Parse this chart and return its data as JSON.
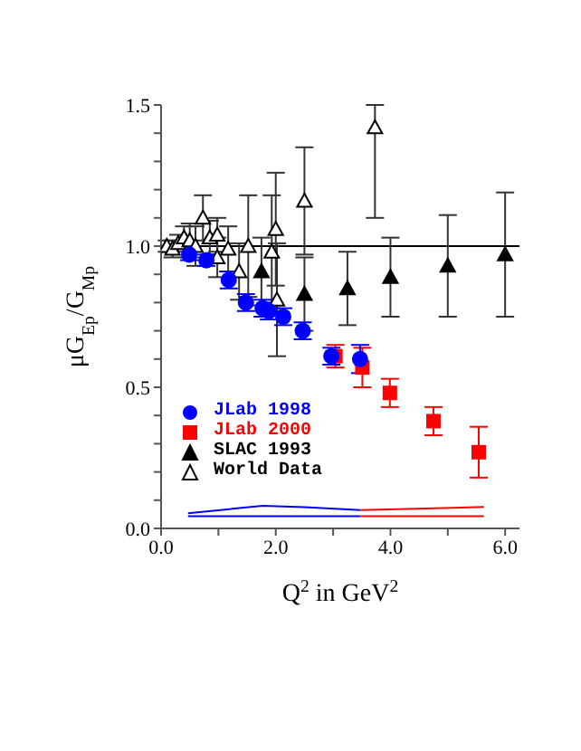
{
  "chart_data": {
    "type": "scatter",
    "xlabel": "Q$^{2}$ in GeV$^{2}$",
    "ylabel": "μG$_{Ep}$/G$_{Mp}$",
    "xlim": [
      0,
      6.25
    ],
    "ylim": [
      0,
      1.5
    ],
    "xticks": [
      {
        "value": 0,
        "label": "0.0"
      },
      {
        "value": 1,
        "label": null
      },
      {
        "value": 2,
        "label": "2.0"
      },
      {
        "value": 3,
        "label": null
      },
      {
        "value": 4,
        "label": "4.0"
      },
      {
        "value": 5,
        "label": null
      },
      {
        "value": 6,
        "label": "6.0"
      }
    ],
    "yticks": [
      {
        "value": 0,
        "label": "0.0"
      },
      {
        "value": 0.1,
        "label": null
      },
      {
        "value": 0.2,
        "label": null
      },
      {
        "value": 0.3,
        "label": null
      },
      {
        "value": 0.4,
        "label": null
      },
      {
        "value": 0.5,
        "label": "0.5"
      },
      {
        "value": 0.6,
        "label": null
      },
      {
        "value": 0.7,
        "label": null
      },
      {
        "value": 0.8,
        "label": null
      },
      {
        "value": 0.9,
        "label": null
      },
      {
        "value": 1,
        "label": "1.0"
      },
      {
        "value": 1.1,
        "label": null
      },
      {
        "value": 1.2,
        "label": null
      },
      {
        "value": 1.3,
        "label": null
      },
      {
        "value": 1.4,
        "label": null
      },
      {
        "value": 1.5,
        "label": "1.5"
      }
    ],
    "grid": false,
    "legend": "bottom left",
    "ref_lines": [
      {
        "axis": "y",
        "value": 1.0,
        "color": "#000000"
      }
    ],
    "series": [
      {
        "name": "JLab 1998",
        "color": "#0000ff",
        "marker": "circle",
        "x": [
          0.49,
          0.79,
          1.18,
          1.48,
          1.77,
          1.88,
          2.13,
          2.47,
          2.97,
          3.47
        ],
        "values": [
          0.97,
          0.95,
          0.88,
          0.8,
          0.78,
          0.77,
          0.75,
          0.7,
          0.61,
          0.6
        ],
        "errors": [
          0.02,
          0.02,
          0.03,
          0.03,
          0.03,
          0.03,
          0.03,
          0.03,
          0.03,
          0.05
        ]
      },
      {
        "name": "JLab 2000",
        "color": "#ff0000",
        "marker": "square",
        "x": [
          3.04,
          3.51,
          3.99,
          4.75,
          5.54
        ],
        "values": [
          0.61,
          0.57,
          0.48,
          0.38,
          0.27
        ],
        "errors": [
          0.04,
          0.07,
          0.05,
          0.05,
          0.09
        ]
      },
      {
        "name": "SLAC 1993",
        "color": "#000000",
        "marker": "triangle",
        "x": [
          1.75,
          2.5,
          3.25,
          4.0,
          5.0,
          6.0
        ],
        "values": [
          0.91,
          0.83,
          0.85,
          0.89,
          0.93,
          0.97
        ],
        "errors": [
          0.12,
          0.13,
          0.13,
          0.14,
          0.18,
          0.22
        ]
      },
      {
        "name": "World Data",
        "color": "#ffffff",
        "marker": "triangle",
        "x": [
          0.1,
          0.2,
          0.3,
          0.4,
          0.5,
          0.6,
          0.73,
          0.85,
          0.98,
          0.98,
          1.17,
          1.36,
          1.52,
          1.93,
          2.0,
          2.02,
          2.5,
          3.73
        ],
        "values": [
          1.0,
          0.99,
          1.01,
          1.03,
          1.02,
          1.0,
          1.1,
          1.03,
          1.04,
          0.96,
          0.99,
          0.91,
          1.0,
          0.98,
          1.06,
          0.81,
          1.16,
          1.42
        ],
        "errors": [
          0.02,
          0.03,
          0.03,
          0.04,
          0.06,
          0.07,
          0.08,
          0.06,
          0.06,
          0.07,
          0.08,
          0.1,
          0.18,
          0.2,
          0.2,
          0.2,
          0.19,
          [
            1.1,
            1.5
          ]
        ]
      },
      {
        "type": "line",
        "color": "#0000ff",
        "x": [
          0.47,
          1.77,
          2.5,
          3.48
        ],
        "values": [
          0.054,
          0.08,
          0.075,
          0.065
        ]
      },
      {
        "type": "line",
        "color": "#0000ff",
        "x": [
          0.47,
          3.48
        ],
        "values": [
          0.043,
          0.043
        ]
      },
      {
        "type": "line",
        "color": "#ff0000",
        "x": [
          3.48,
          5.63
        ],
        "values": [
          0.065,
          0.076
        ]
      },
      {
        "type": "line",
        "color": "#ff0000",
        "x": [
          3.48,
          5.63
        ],
        "values": [
          0.043,
          0.043
        ]
      }
    ]
  }
}
